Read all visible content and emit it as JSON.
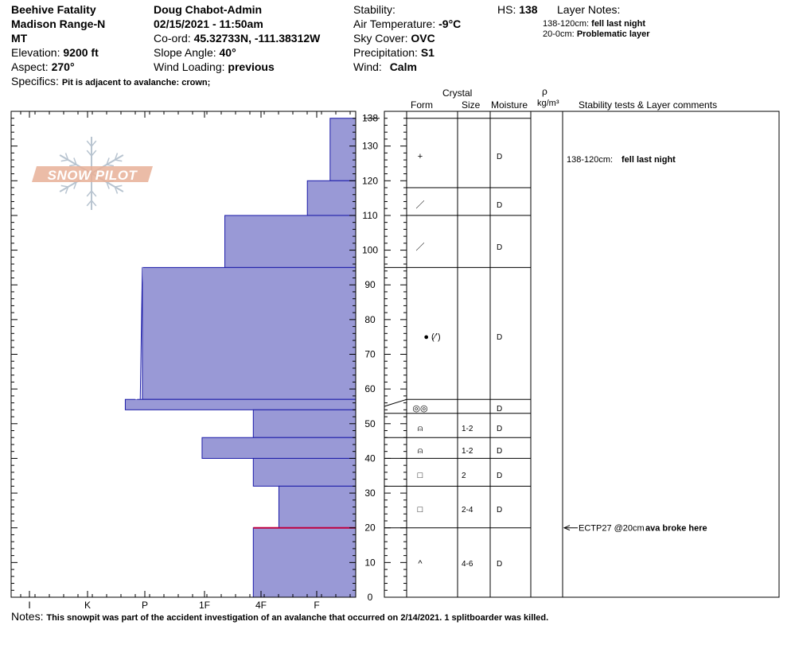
{
  "header": {
    "location_name": "Beehive Fatality",
    "range": "Madison Range-N",
    "state": "MT",
    "elevation_label": "Elevation:",
    "elevation_value": "9200 ft",
    "aspect_label": "Aspect:",
    "aspect_value": "270°",
    "observer": "Doug Chabot-Admin",
    "datetime": "02/15/2021 - 11:50am",
    "coord_label": "Co-ord:",
    "coord_value": "45.32733N, -111.38312W",
    "slope_label": "Slope Angle:",
    "slope_value": "40°",
    "wind_loading_label": "Wind Loading:",
    "wind_loading_value": "previous",
    "stability_label": "Stability:",
    "stability_value": "",
    "air_temp_label": "Air Temperature:",
    "air_temp_value": "-9°C",
    "sky_label": "Sky Cover:",
    "sky_value": "OVC",
    "precip_label": "Precipitation:",
    "precip_value": "S1",
    "wind_label": "Wind:",
    "wind_value": "Calm",
    "hs_label": "HS:",
    "hs_value": "138",
    "layer_notes_label": "Layer Notes:",
    "layer_notes": [
      {
        "range": "138-120cm:",
        "note": "fell last night"
      },
      {
        "range": "20-0cm:",
        "note": "Problematic layer"
      }
    ],
    "specifics_label": "Specifics:",
    "specifics_value": "Pit is adjacent to avalanche: crown;"
  },
  "logo": {
    "text": "SNOW PILOT"
  },
  "columns": {
    "crystal": "Crystal",
    "form": "Form",
    "size": "Size",
    "moisture": "Moisture",
    "rho": "ρ",
    "density_unit": "kg/m³",
    "comments": "Stability tests & Layer comments"
  },
  "notes": {
    "label": "Notes:",
    "text": "This snowpit was part of the accident investigation of an avalanche that occurred on 2/14/2021. 1 splitboarder was killed."
  },
  "chart_data": {
    "type": "bar",
    "title": "",
    "x_axis": {
      "label": "",
      "hardness_ticks": [
        "I",
        "K",
        "P",
        "1F",
        "4F",
        "F"
      ],
      "orientation": "hardness increases leftward"
    },
    "y_axis": {
      "label": "",
      "min": 0,
      "max": 140,
      "major_step": 10,
      "tick_labels": [
        0,
        10,
        20,
        30,
        40,
        50,
        60,
        70,
        80,
        90,
        100,
        110,
        120,
        130,
        138
      ]
    },
    "hs_cm": 138,
    "hardness_profile": [
      {
        "top": 138,
        "bottom": 120,
        "hardness_index": 0.45
      },
      {
        "top": 120,
        "bottom": 110,
        "hardness_index": 0.85
      },
      {
        "top": 110,
        "bottom": 95,
        "hardness_index": 2.3
      },
      {
        "top": 95,
        "bottom": 57,
        "hardness_index": 3.75
      },
      {
        "top": 57,
        "bottom": 54,
        "hardness_index": 4.05
      },
      {
        "top": 54,
        "bottom": 46,
        "hardness_index": 1.8
      },
      {
        "top": 46,
        "bottom": 40,
        "hardness_index": 2.7
      },
      {
        "top": 40,
        "bottom": 32,
        "hardness_index": 1.8
      },
      {
        "top": 32,
        "bottom": 20,
        "hardness_index": 1.35
      },
      {
        "top": 20,
        "bottom": 0,
        "hardness_index": 1.8
      }
    ],
    "layers": [
      {
        "top": 138,
        "bottom": 118,
        "form": "+",
        "size": "",
        "moisture": "D"
      },
      {
        "top": 118,
        "bottom": 110,
        "form": "／",
        "size": "",
        "moisture": "D"
      },
      {
        "top": 110,
        "bottom": 95,
        "form": "／",
        "size": "",
        "moisture": "D"
      },
      {
        "top": 95,
        "bottom": 57,
        "form": "● (∕ʼ)",
        "size": "",
        "moisture": "D"
      },
      {
        "top": 57,
        "bottom": 53,
        "form": "◎◎",
        "size": "",
        "moisture": "D"
      },
      {
        "top": 53,
        "bottom": 46,
        "form": "⍝",
        "size": "1-2",
        "moisture": "D"
      },
      {
        "top": 46,
        "bottom": 40,
        "form": "⍝",
        "size": "1-2",
        "moisture": "D"
      },
      {
        "top": 40,
        "bottom": 32,
        "form": "□",
        "size": "2",
        "moisture": "D"
      },
      {
        "top": 32,
        "bottom": 20,
        "form": "□",
        "size": "2-4",
        "moisture": "D"
      },
      {
        "top": 20,
        "bottom": 0,
        "form": "^",
        "size": "4-6",
        "moisture": "D"
      }
    ],
    "stability_tests": [
      {
        "depth": 20,
        "test": "ECTP27 @20cm",
        "comment": "ava broke here"
      }
    ],
    "layer_comments": [
      {
        "depth": 130,
        "range": "138-120cm:",
        "comment": "fell last night"
      }
    ],
    "problem_layer_depth": 20
  }
}
